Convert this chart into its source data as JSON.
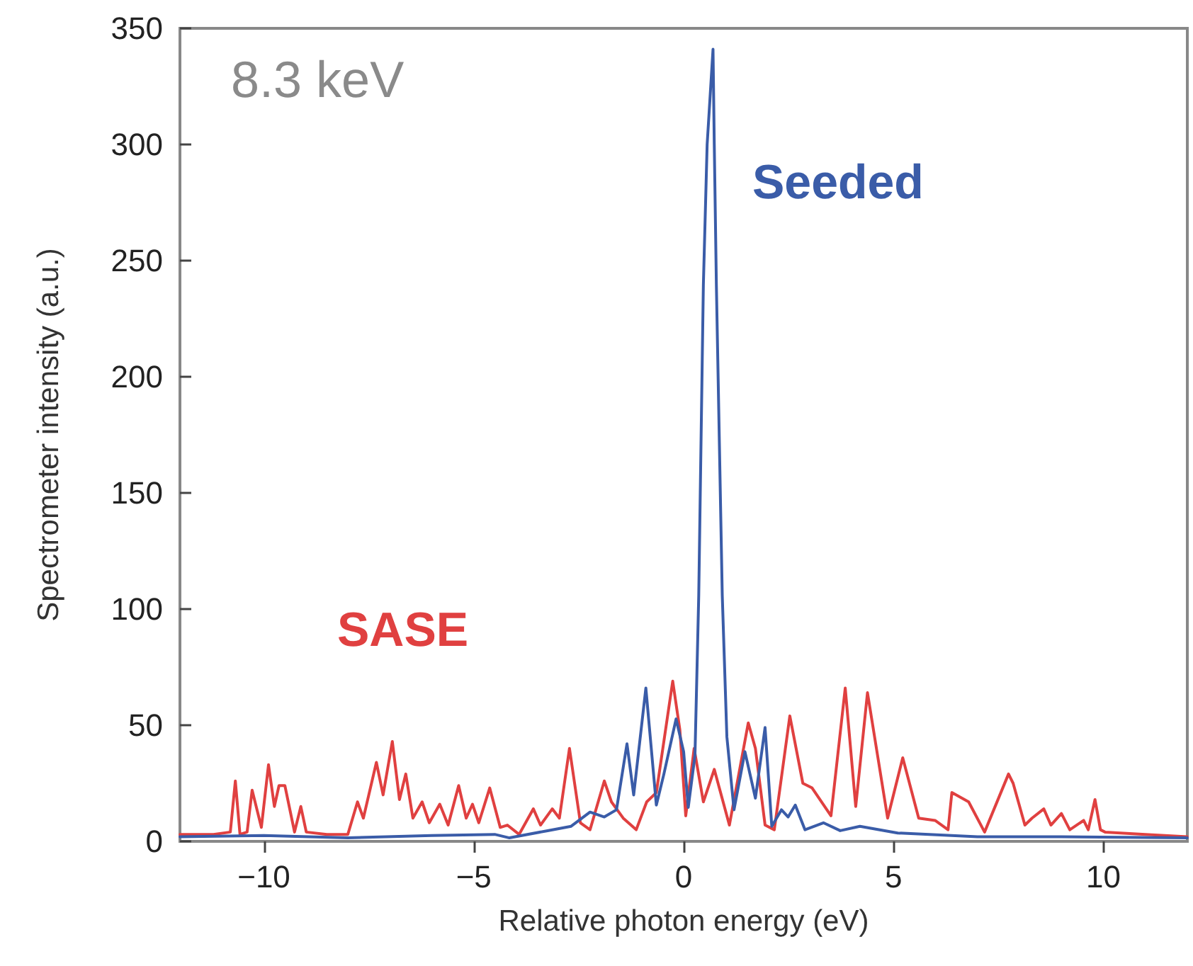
{
  "chart_data": {
    "type": "line",
    "xlabel": "Relative photon energy (eV)",
    "ylabel": "Spectrometer intensity (a.u.)",
    "annotations": [
      "8.3 keV"
    ],
    "xlim": [
      -12,
      12
    ],
    "xticks": [
      {
        "value": -10,
        "label": "−10"
      },
      {
        "value": -5,
        "label": "−5"
      },
      0,
      5,
      10
    ],
    "ylim": [
      0,
      350
    ],
    "yticks": [
      0,
      50,
      100,
      150,
      200,
      250,
      300,
      350
    ],
    "grid": false,
    "legend": false,
    "series": [
      {
        "name": "SASE",
        "color": "#e04040",
        "x": [
          -12,
          -11.2,
          -10.8,
          -10.68,
          -10.57,
          -10.4,
          -10.28,
          -10.06,
          -9.89,
          -9.75,
          -9.64,
          -9.5,
          -9.27,
          -9.12,
          -8.99,
          -8.5,
          -8.0,
          -7.77,
          -7.63,
          -7.32,
          -7.16,
          -6.94,
          -6.77,
          -6.62,
          -6.45,
          -6.23,
          -6.06,
          -5.81,
          -5.61,
          -5.36,
          -5.18,
          -5.03,
          -4.88,
          -4.62,
          -4.37,
          -4.2,
          -3.92,
          -3.58,
          -3.41,
          -3.13,
          -2.96,
          -2.72,
          -2.46,
          -2.23,
          -1.89,
          -1.72,
          -1.44,
          -1.13,
          -0.88,
          -0.65,
          -0.26,
          -0.09,
          0.05,
          0.25,
          0.47,
          0.73,
          1.09,
          1.54,
          1.71,
          1.94,
          2.16,
          2.53,
          2.84,
          3.06,
          3.51,
          3.85,
          4.1,
          4.38,
          4.86,
          5.22,
          5.6,
          5.99,
          6.3,
          6.39,
          6.79,
          7.17,
          7.74,
          7.85,
          8.13,
          8.3,
          8.58,
          8.75,
          9.0,
          9.2,
          9.53,
          9.64,
          9.8,
          9.93,
          10.04,
          11,
          12
        ],
        "values": [
          3,
          3,
          4,
          26,
          3,
          4,
          22,
          6,
          33,
          15,
          24,
          24,
          4,
          15,
          4,
          3,
          3,
          17,
          10,
          34,
          20,
          43,
          18,
          29,
          10,
          17,
          8,
          16,
          7,
          24,
          10,
          16,
          8,
          23,
          6,
          7,
          3,
          14,
          7,
          14,
          10,
          40,
          8,
          5,
          26,
          17,
          10,
          5,
          17,
          21,
          69,
          48,
          11,
          40,
          17,
          31,
          7,
          51,
          40,
          7,
          5,
          54,
          25,
          23,
          11,
          66,
          15,
          64,
          10,
          36,
          10,
          9,
          5,
          21,
          17,
          4,
          29,
          25,
          7,
          10,
          14,
          7,
          12,
          5,
          9,
          5,
          18,
          5,
          4,
          3,
          2
        ]
      },
      {
        "name": "Seeded",
        "color": "#3a5ca8",
        "x": [
          -12,
          -10,
          -8,
          -6,
          -4.5,
          -4.15,
          -3.24,
          -2.68,
          -2.23,
          -1.89,
          -1.6,
          -1.35,
          -1.19,
          -0.9,
          -0.65,
          -0.47,
          -0.18,
          0.0,
          0.11,
          0.27,
          0.36,
          0.47,
          0.56,
          0.7,
          0.73,
          0.78,
          0.92,
          1.03,
          1.2,
          1.46,
          1.71,
          1.94,
          2.1,
          2.33,
          2.49,
          2.66,
          2.89,
          3.33,
          3.73,
          4.2,
          5.1,
          7,
          9,
          12
        ],
        "values": [
          2,
          2.5,
          1.5,
          2.5,
          3,
          1.5,
          4.6,
          6.5,
          12.6,
          10.5,
          13.6,
          42,
          20,
          66,
          15.6,
          29,
          52.7,
          38.6,
          14.6,
          37,
          106,
          239.5,
          300,
          341,
          300,
          239.5,
          106,
          45,
          13.6,
          38.6,
          18.6,
          49,
          6.5,
          13.6,
          10.5,
          15.6,
          5,
          8,
          4.6,
          6.5,
          3.6,
          2,
          2,
          1.5
        ]
      }
    ]
  }
}
